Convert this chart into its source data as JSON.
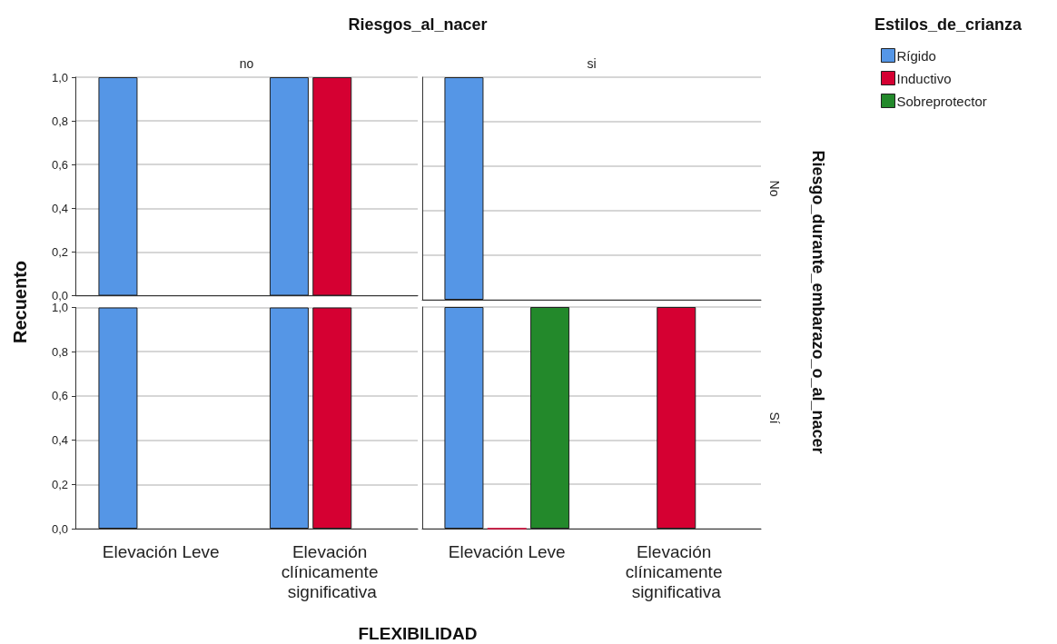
{
  "chart_data": [
    {
      "type": "bar",
      "title": "Riesgos_al_nacer",
      "ylabel": "Recuento",
      "annotations": [
        "no"
      ],
      "categories": [
        "Elevación Leve",
        "Elevación clínicamente significativa"
      ],
      "series": [
        {
          "color": "#5596e6",
          "values": [
            1,
            1
          ]
        },
        {
          "color": "#d50032",
          "values": [
            null,
            1
          ]
        },
        {
          "color": "#23892b",
          "values": [
            null,
            null
          ]
        }
      ],
      "ylim": [
        0,
        1
      ],
      "yticks": [
        {
          "value": 0,
          "label": "0,0"
        },
        {
          "value": 0.2,
          "label": "0,2"
        },
        {
          "value": 0.4,
          "label": "0,4"
        },
        {
          "value": 0.6,
          "label": "0,6"
        },
        {
          "value": 0.8,
          "label": "0,8"
        },
        {
          "value": 1,
          "label": "1,0"
        }
      ],
      "grid": "y",
      "tick_labels": "y"
    },
    {
      "type": "bar",
      "annotations": [
        "si",
        "No",
        "Riesgo_durante_embarazo_o_al_nacer"
      ],
      "legend_title": "Estilos_de_crianza",
      "legend": "right",
      "categories": [
        "Elevación Leve",
        "Elevación clínicamente significativa"
      ],
      "series": [
        {
          "name": "Rígido",
          "color": "#5596e6",
          "values": [
            1,
            null
          ]
        },
        {
          "name": "Inductivo",
          "color": "#d50032",
          "values": [
            null,
            null
          ]
        },
        {
          "name": "Sobreprotector",
          "color": "#23892b",
          "values": [
            null,
            null
          ]
        }
      ],
      "ylim": [
        0,
        1
      ],
      "yticks": [
        {
          "value": 0,
          "label": "0,0"
        },
        {
          "value": 0.2,
          "label": "0,2"
        },
        {
          "value": 0.4,
          "label": "0,4"
        },
        {
          "value": 0.6,
          "label": "0,6"
        },
        {
          "value": 0.8,
          "label": "0,8"
        },
        {
          "value": 1,
          "label": "1,0"
        }
      ],
      "grid": "y",
      "tick_labels": false
    },
    {
      "type": "bar",
      "xlabel": "FLEXIBILIDAD",
      "categories": [
        "Elevación Leve",
        "Elevación clínicamente significativa"
      ],
      "series": [
        {
          "color": "#5596e6",
          "values": [
            1,
            1
          ]
        },
        {
          "color": "#d50032",
          "values": [
            null,
            1
          ]
        },
        {
          "color": "#23892b",
          "values": [
            null,
            null
          ]
        }
      ],
      "ylim": [
        0,
        1
      ],
      "yticks": [
        {
          "value": 0,
          "label": "0,0"
        },
        {
          "value": 0.2,
          "label": "0,2"
        },
        {
          "value": 0.4,
          "label": "0,4"
        },
        {
          "value": 0.6,
          "label": "0,6"
        },
        {
          "value": 0.8,
          "label": "0,8"
        },
        {
          "value": 1,
          "label": "1,0"
        }
      ],
      "grid": "y"
    },
    {
      "type": "bar",
      "annotations": [
        "Sí"
      ],
      "categories": [
        "Elevación Leve",
        "Elevación clínicamente significativa"
      ],
      "series": [
        {
          "color": "#5596e6",
          "values": [
            1,
            null
          ]
        },
        {
          "color": "#d50032",
          "values": [
            0,
            1
          ]
        },
        {
          "color": "#23892b",
          "values": [
            1,
            null
          ]
        }
      ],
      "ylim": [
        0,
        1
      ],
      "yticks": [
        {
          "value": 0,
          "label": "0,0"
        },
        {
          "value": 0.2,
          "label": "0,2"
        },
        {
          "value": 0.4,
          "label": "0,4"
        },
        {
          "value": 0.6,
          "label": "0,6"
        },
        {
          "value": 0.8,
          "label": "0,8"
        },
        {
          "value": 1,
          "label": "1,0"
        }
      ],
      "grid": "y",
      "tick_labels": "x"
    }
  ]
}
